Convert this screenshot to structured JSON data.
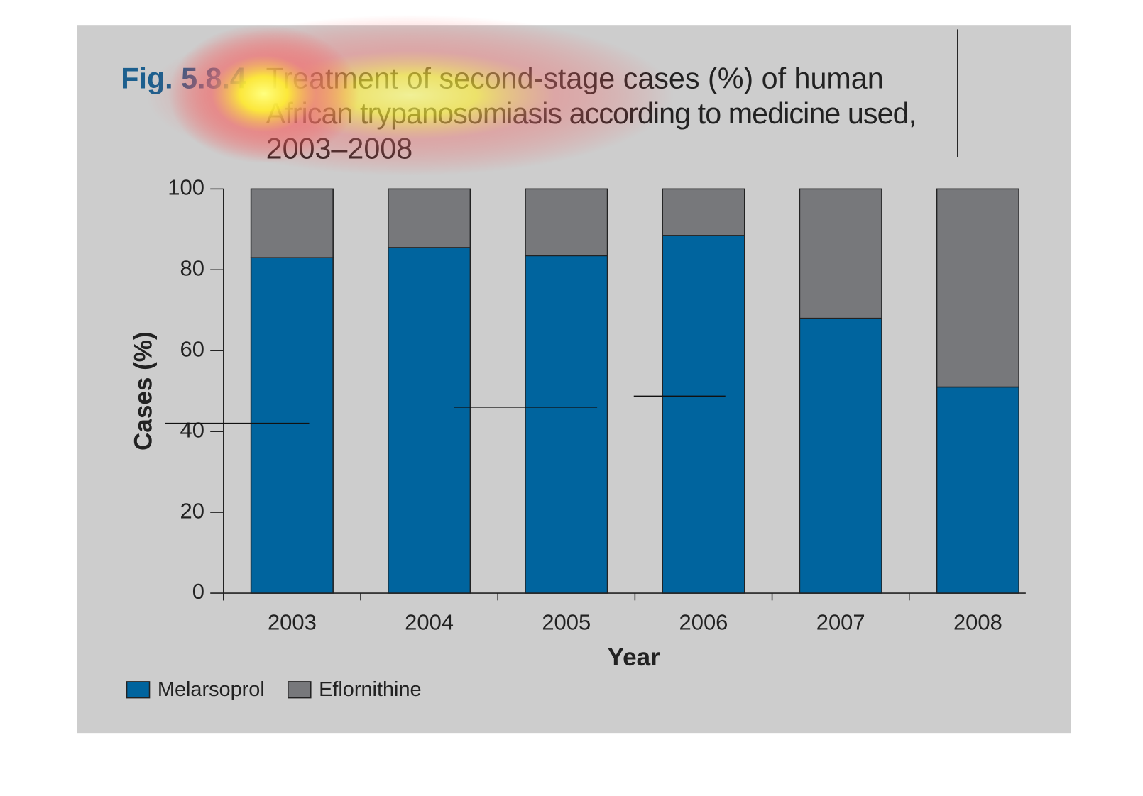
{
  "chart_data": {
    "type": "stacked_bar",
    "figure_label": "Fig. 5.8.4",
    "title": [
      "Treatment of second-stage cases (%) of human",
      "African trypanosomiasis according to medicine used,",
      "2003–2008"
    ],
    "x_label": "Year",
    "y_label": "Cases (%)",
    "categories": [
      "2003",
      "2004",
      "2005",
      "2006",
      "2007",
      "2008"
    ],
    "series": [
      {
        "name": "Melarsoprol",
        "color": "#00649e",
        "values": [
          83,
          85.5,
          83.5,
          88.5,
          68,
          51
        ]
      },
      {
        "name": "Eflornithine",
        "color": "#77787b",
        "values": [
          17,
          14.5,
          16.5,
          11.5,
          32,
          49
        ]
      }
    ],
    "ylim": [
      0,
      100
    ],
    "yticks": [
      0,
      20,
      40,
      60,
      80,
      100
    ],
    "legend": "bottom-left"
  }
}
